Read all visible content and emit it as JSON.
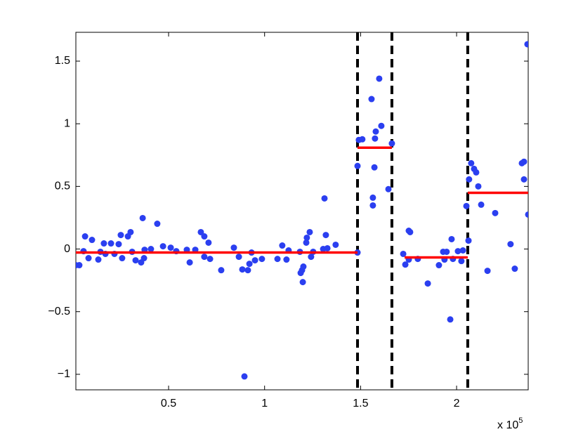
{
  "chart_data": {
    "type": "scatter",
    "color": "#2b3ff0",
    "x": [
      0.017,
      0.035,
      0.057,
      0.065,
      0.083,
      0.101,
      0.134,
      0.145,
      0.163,
      0.171,
      0.2,
      0.218,
      0.24,
      0.251,
      0.258,
      0.288,
      0.302,
      0.31,
      0.328,
      0.357,
      0.365,
      0.372,
      0.375,
      0.408,
      0.441,
      0.471,
      0.511,
      0.54,
      0.595,
      0.61,
      0.639,
      0.668,
      0.686,
      0.686,
      0.708,
      0.716,
      0.774,
      0.84,
      0.866,
      0.884,
      0.895,
      0.913,
      0.921,
      0.932,
      0.95,
      0.986,
      1.067,
      1.092,
      1.114,
      1.125,
      1.184,
      1.188,
      1.195,
      1.199,
      1.202,
      1.217,
      1.22,
      1.235,
      1.242,
      1.253,
      1.305,
      1.312,
      1.319,
      1.327,
      1.37,
      1.484,
      1.484,
      1.491,
      1.509,
      1.557,
      1.564,
      1.564,
      1.572,
      1.575,
      1.579,
      1.597,
      1.608,
      1.645,
      1.663,
      1.722,
      1.733,
      1.751,
      1.758,
      1.751,
      1.798,
      1.85,
      1.908,
      1.93,
      1.937,
      1.948,
      1.967,
      1.974,
      1.981,
      2.007,
      2.025,
      2.033,
      2.051,
      2.062,
      2.065,
      2.076,
      2.091,
      2.102,
      2.113,
      2.128,
      2.161,
      2.201,
      2.281,
      2.303,
      2.34,
      2.351,
      2.351,
      2.369,
      2.373
    ],
    "values": [
      -0.129,
      -0.129,
      -0.017,
      0.101,
      -0.073,
      0.073,
      -0.084,
      -0.022,
      0.045,
      -0.039,
      0.045,
      -0.039,
      0.039,
      0.112,
      -0.073,
      0.101,
      0.135,
      -0.022,
      -0.09,
      -0.107,
      0.247,
      -0.073,
      -0.006,
      0,
      0.202,
      0.022,
      0.011,
      -0.017,
      -0.006,
      -0.107,
      -0.006,
      0.135,
      0.101,
      -0.062,
      0.051,
      -0.079,
      -0.169,
      0.011,
      -0.062,
      -0.163,
      -1.017,
      -0.169,
      -0.118,
      -0.028,
      -0.09,
      -0.079,
      -0.079,
      0.028,
      -0.084,
      -0.011,
      -0.022,
      -0.191,
      -0.169,
      -0.264,
      -0.14,
      0.051,
      0.09,
      0.135,
      -0.062,
      -0.022,
      0,
      0.404,
      0.112,
      0.006,
      0.034,
      -0.028,
      0.663,
      0.871,
      0.876,
      1.197,
      0.41,
      0.348,
      0.652,
      0.882,
      0.938,
      1.36,
      0.983,
      0.478,
      0.843,
      -0.039,
      -0.124,
      0.146,
      0.135,
      -0.084,
      -0.079,
      -0.275,
      -0.129,
      -0.022,
      -0.084,
      -0.022,
      -0.562,
      0.079,
      -0.079,
      -0.017,
      -0.096,
      -0.011,
      0.343,
      0.067,
      0.556,
      0.685,
      0.64,
      0.612,
      0.5,
      0.354,
      -0.174,
      0.287,
      0.039,
      -0.157,
      0.685,
      0.697,
      0.556,
      1.635,
      0.275
    ],
    "segments": {
      "color": "#ff0000",
      "items": [
        {
          "x": [
            0.017,
            1.484
          ],
          "y": -0.028
        },
        {
          "x": [
            1.484,
            1.663
          ],
          "y": 0.809
        },
        {
          "x": [
            1.729,
            2.058
          ],
          "y": -0.067
        },
        {
          "x": [
            2.058,
            2.373
          ],
          "y": 0.449
        }
      ]
    },
    "changepoints": {
      "color": "#000000",
      "x": [
        1.484,
        1.663,
        2.058
      ]
    },
    "xlim": [
      0.017,
      2.373
    ],
    "ylim": [
      -1.124,
      1.73
    ],
    "xticks": [
      0.5,
      1,
      1.5,
      2
    ],
    "yticks": [
      {
        "value": -1,
        "label": "−1"
      },
      {
        "value": -0.5,
        "label": "−0.5"
      },
      0,
      0.5,
      1,
      1.5
    ],
    "x_multiplier": {
      "base": "x 10",
      "exponent": "5"
    }
  }
}
